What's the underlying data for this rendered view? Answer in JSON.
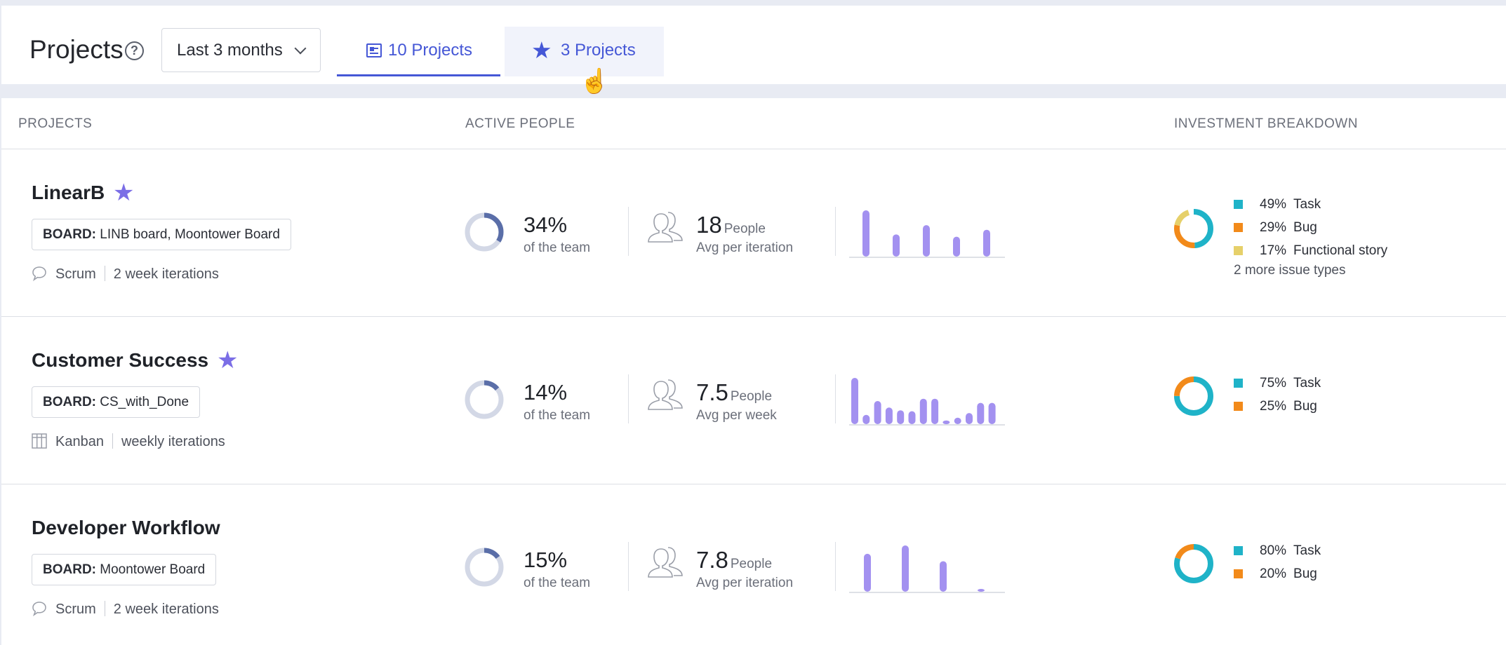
{
  "header": {
    "title": "Projects",
    "range": "Last 3 months",
    "tabs": [
      {
        "label": "10 Projects",
        "icon": "list-icon"
      },
      {
        "label": "3 Projects",
        "icon": "star-icon"
      }
    ]
  },
  "columns": [
    "PROJECTS",
    "ACTIVE PEOPLE",
    "INVESTMENT BREAKDOWN"
  ],
  "colors": {
    "accent": "#4557d6",
    "star": "#7b6ee6",
    "bars": "#a391f0",
    "task": "#1fb3c8",
    "bug": "#f28a1a",
    "functional_story": "#e6d06a",
    "team_donut_fill": "#5a6ea8",
    "team_donut_track": "#d3d8e6"
  },
  "projects": [
    {
      "name": "LinearB",
      "starred": true,
      "board_label": "BOARD:",
      "board": "LINB board, Moontower Board",
      "method": "Scrum",
      "method_icon": "chat-bubble-icon",
      "iterations": "2 week iterations",
      "team_pct": "34%",
      "team_pct_value": 34,
      "team_sub": "of the team",
      "people": "18",
      "people_unit": "People",
      "people_sub": "Avg per iteration",
      "activity": [
        1.0,
        0.48,
        0.68,
        0.43,
        0.58
      ],
      "breakdown": [
        {
          "pct": "49%",
          "label": "Task",
          "value": 49,
          "color": "task"
        },
        {
          "pct": "29%",
          "label": "Bug",
          "value": 29,
          "color": "bug"
        },
        {
          "pct": "17%",
          "label": "Functional story",
          "value": 17,
          "color": "functional_story"
        }
      ],
      "more": "2 more issue types"
    },
    {
      "name": "Customer Success",
      "starred": true,
      "board_label": "BOARD:",
      "board": "CS_with_Done",
      "method": "Kanban",
      "method_icon": "board-columns-icon",
      "iterations": "weekly iterations",
      "team_pct": "14%",
      "team_pct_value": 14,
      "team_sub": "of the team",
      "people": "7.5",
      "people_unit": "People",
      "people_sub": "Avg per week",
      "activity": [
        1.0,
        0.2,
        0.5,
        0.36,
        0.3,
        0.28,
        0.55,
        0.55,
        0.08,
        0.14,
        0.24,
        0.46,
        0.46
      ],
      "breakdown": [
        {
          "pct": "75%",
          "label": "Task",
          "value": 75,
          "color": "task"
        },
        {
          "pct": "25%",
          "label": "Bug",
          "value": 25,
          "color": "bug"
        }
      ],
      "more": ""
    },
    {
      "name": "Developer Workflow",
      "starred": false,
      "board_label": "BOARD:",
      "board": "Moontower Board",
      "method": "Scrum",
      "method_icon": "chat-bubble-icon",
      "iterations": "2 week iterations",
      "team_pct": "15%",
      "team_pct_value": 15,
      "team_sub": "of the team",
      "people": "7.8",
      "people_unit": "People",
      "people_sub": "Avg per iteration",
      "activity": [
        0.82,
        1.0,
        0.66,
        0.06
      ],
      "breakdown": [
        {
          "pct": "80%",
          "label": "Task",
          "value": 80,
          "color": "task"
        },
        {
          "pct": "20%",
          "label": "Bug",
          "value": 20,
          "color": "bug"
        }
      ],
      "more": ""
    }
  ]
}
